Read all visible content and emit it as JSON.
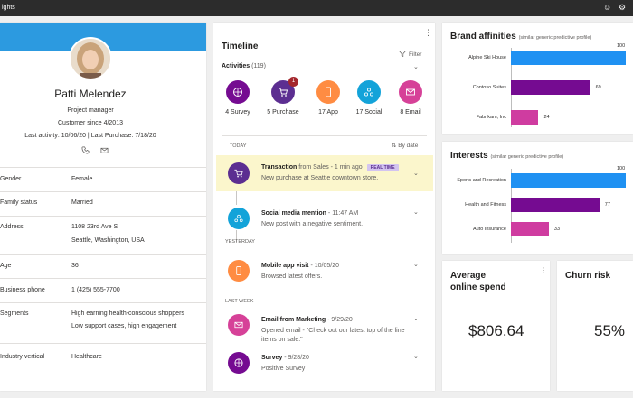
{
  "app": {
    "title": "ights"
  },
  "colors": {
    "accent": "#2c9ae0",
    "purple": "#5c2e91",
    "darkpurple": "#750b91",
    "orange": "#ff8c42",
    "teal": "#13a3d9",
    "pink": "#d64198",
    "highlight": "#fbf6cc",
    "blue": "#1f91f2",
    "magenta": "#cf3ca0"
  },
  "profile": {
    "name": "Patti Melendez",
    "role": "Project manager",
    "customer_since": "Customer since 4/2013",
    "last_activity": "Last activity: 10/06/20 | Last Purchase: 7/18/20",
    "icons": [
      "phone-icon",
      "mail-icon"
    ],
    "fields": [
      {
        "label": "Gender",
        "value": "Female"
      },
      {
        "label": "Family status",
        "value": "Married"
      },
      {
        "label": "Address",
        "value": "1108 23rd Ave S",
        "value2": "Seattle, Washington, USA"
      },
      {
        "label": "Age",
        "value": "36"
      },
      {
        "label": "Business phone",
        "value": "1 (425) 555-7700"
      },
      {
        "label": "Segments",
        "value": "High earning health-conscious shoppers",
        "value2": "Low support cases, high engagement"
      },
      {
        "label": "Industry vertical",
        "value": "Healthcare"
      }
    ]
  },
  "timeline": {
    "title": "Timeline",
    "more_icon": "more-icon",
    "filter_label": "Filter",
    "activities_label": "Activities",
    "activities_count": "(119)",
    "sort_label": "By date",
    "categories": [
      {
        "label": "4 Survey",
        "icon": "survey-icon",
        "color": "#750b91"
      },
      {
        "label": "5 Purchase",
        "icon": "cart-icon",
        "color": "#5c2e91",
        "badge": "1"
      },
      {
        "label": "17 App",
        "icon": "phone-app-icon",
        "color": "#ff8c42"
      },
      {
        "label": "17 Social",
        "icon": "social-icon",
        "color": "#13a3d9"
      },
      {
        "label": "8 Email",
        "icon": "email-icon",
        "color": "#d64198"
      }
    ],
    "date_groups": [
      "TODAY",
      "YESTERDAY",
      "LAST WEEK"
    ],
    "events": [
      {
        "title": "Transaction",
        "meta": " from Sales - 1 min ago",
        "tag": "REAL TIME",
        "sub": "New purchase at Seattle downtown store."
      },
      {
        "title": "Social media mention",
        "meta": " - 11:47 AM",
        "sub": "New post with a negative sentiment."
      },
      {
        "title": "Mobile app visit",
        "meta": " - 10/05/20",
        "sub": "Browsed latest offers."
      },
      {
        "title": "Email from Marketing",
        "meta": " - 9/29/20",
        "sub": "Opened email - \"Check out our latest top of the line items on sale.\""
      },
      {
        "title": "Survey",
        "meta": " - 9/28/20",
        "sub": "Positive Survey"
      }
    ]
  },
  "brand": {
    "title": "Brand affinities",
    "subtitle": "(similar generic predictive profile)",
    "chart_data": {
      "type": "bar",
      "categories": [
        "Alpine Ski House",
        "Contoso Suites",
        "Fabrikam, Inc"
      ],
      "values": [
        100,
        69,
        24
      ],
      "value_labels": [
        "100",
        "69",
        "24"
      ]
    }
  },
  "interests": {
    "title": "Interests",
    "subtitle": "(similar generic predictive profile)",
    "chart_data": {
      "type": "bar",
      "categories": [
        "Sports and Recreation",
        "Health and Fitness",
        "Auto Insurance"
      ],
      "values": [
        100,
        77,
        33
      ],
      "value_labels": [
        "100",
        "77",
        "33"
      ]
    }
  },
  "metrics": {
    "spend_title_line1": "Average",
    "spend_title_line2": "online spend",
    "spend_value": "$806.64",
    "churn_title": "Churn risk",
    "churn_value": "55%"
  }
}
